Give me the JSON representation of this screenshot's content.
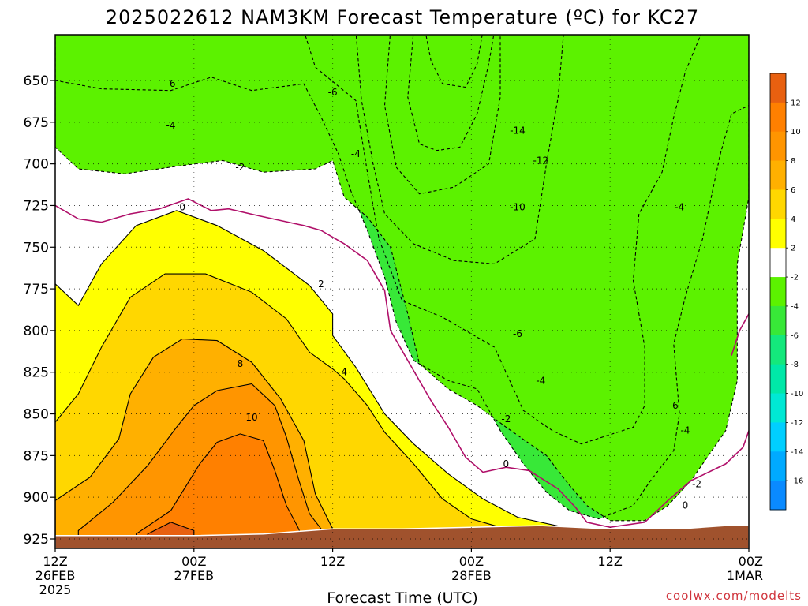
{
  "title": "2025022612 NAM3KM Forecast Temperature (ºC) for KC27",
  "credit": "coolwx.com/modelts",
  "chart_data": {
    "type": "heatmap",
    "title": "2025022612 NAM3KM Forecast Temperature (ºC) for KC27",
    "xlabel": "Forecast Time (UTC)",
    "ylabel": "",
    "x_unit": "forecast hour from 2025022612",
    "y_unit": "pressure (hPa)",
    "y_reversed": true,
    "xlim": [
      0,
      60
    ],
    "ylim": [
      935,
      620
    ],
    "x_ticks": [
      {
        "x": 0,
        "lines": [
          "12Z",
          "26FEB",
          "2025"
        ]
      },
      {
        "x": 12,
        "lines": [
          "00Z",
          "27FEB"
        ]
      },
      {
        "x": 24,
        "lines": [
          "12Z"
        ]
      },
      {
        "x": 36,
        "lines": [
          "00Z",
          "28FEB"
        ]
      },
      {
        "x": 48,
        "lines": [
          "12Z"
        ]
      },
      {
        "x": 60,
        "lines": [
          "00Z",
          "1MAR"
        ]
      }
    ],
    "y_ticks": [
      650,
      675,
      700,
      725,
      750,
      775,
      800,
      825,
      850,
      875,
      900,
      925
    ],
    "grid": true,
    "terrain": {
      "color": "#a0522d",
      "surface_pressure": [
        [
          0,
          923
        ],
        [
          12,
          923
        ],
        [
          18,
          922
        ],
        [
          24,
          919
        ],
        [
          30,
          919
        ],
        [
          36,
          918
        ],
        [
          42,
          917
        ],
        [
          48,
          919
        ],
        [
          54,
          919
        ],
        [
          58,
          917
        ],
        [
          60,
          917
        ]
      ]
    },
    "colorbar": {
      "colors": [
        "#0a8aff",
        "#00aaff",
        "#00cfff",
        "#00e8d4",
        "#00e8a8",
        "#14e87c",
        "#38e838",
        "#5cf200",
        "#ffffff",
        "#ffff00",
        "#ffd700",
        "#ffb000",
        "#ff9500",
        "#ff8000",
        "#e86010"
      ],
      "tick_labels": [
        "-16",
        "-14",
        "-12",
        "-10",
        "-8",
        "-6",
        "-4",
        "-2",
        "2",
        "4",
        "6",
        "8",
        "10",
        "12"
      ]
    },
    "levels": [
      {
        "value": -14,
        "color": "#00aaff",
        "points": [
          [
            32,
            620
          ],
          [
            32.5,
            638
          ],
          [
            33.5,
            652
          ],
          [
            35.5,
            654
          ],
          [
            36.5,
            640
          ],
          [
            37,
            620
          ]
        ]
      },
      {
        "value": -12,
        "color": "#00cfff",
        "points": [
          [
            31,
            620
          ],
          [
            30.5,
            660
          ],
          [
            31.5,
            688
          ],
          [
            33,
            692
          ],
          [
            35,
            690
          ],
          [
            36.5,
            670
          ],
          [
            37.5,
            640
          ],
          [
            38,
            620
          ]
        ]
      },
      {
        "value": -10,
        "color": "#00e8d4",
        "points": [
          [
            29,
            620
          ],
          [
            28.5,
            665
          ],
          [
            29.5,
            702
          ],
          [
            31.5,
            718
          ],
          [
            34.5,
            714
          ],
          [
            37.5,
            700
          ],
          [
            38.5,
            660
          ],
          [
            38.5,
            620
          ]
        ]
      },
      {
        "value": -8,
        "color": "#00e8a8",
        "points": [
          [
            26,
            620
          ],
          [
            26.5,
            662
          ],
          [
            27.5,
            700
          ],
          [
            28.5,
            730
          ],
          [
            31,
            748
          ],
          [
            34.5,
            758
          ],
          [
            38,
            760
          ],
          [
            41.5,
            745
          ],
          [
            42.5,
            700
          ],
          [
            43.5,
            660
          ],
          [
            44,
            620
          ]
        ]
      },
      {
        "value": -6,
        "color": "#14e87c",
        "points": [
          [
            21.5,
            620
          ],
          [
            22.5,
            642
          ],
          [
            26,
            662
          ],
          [
            27,
            705
          ],
          [
            28,
            745
          ],
          [
            30,
            782
          ],
          [
            33.5,
            792
          ],
          [
            38,
            810
          ],
          [
            40.5,
            848
          ],
          [
            43,
            860
          ],
          [
            45.5,
            868
          ],
          [
            50,
            858
          ],
          [
            51,
            845
          ],
          [
            51,
            810
          ],
          [
            50,
            770
          ],
          [
            50.5,
            730
          ],
          [
            52.5,
            705
          ],
          [
            53.5,
            672
          ],
          [
            54.5,
            645
          ],
          [
            56,
            620
          ]
        ]
      },
      {
        "value": -4,
        "color": "#38e838",
        "points": [
          [
            0,
            620
          ],
          [
            0,
            650
          ],
          [
            4,
            655
          ],
          [
            10,
            656
          ],
          [
            13.5,
            648
          ],
          [
            17,
            656
          ],
          [
            21.5,
            652
          ],
          [
            23,
            672
          ],
          [
            24.5,
            694
          ],
          [
            25.5,
            715
          ],
          [
            27,
            740
          ],
          [
            28.5,
            768
          ],
          [
            29.5,
            795
          ],
          [
            31,
            818
          ],
          [
            34,
            830
          ],
          [
            36.5,
            835
          ],
          [
            38.5,
            860
          ],
          [
            40.5,
            880
          ],
          [
            42.5,
            897
          ],
          [
            44.5,
            908
          ],
          [
            47,
            913
          ],
          [
            50,
            905
          ],
          [
            51.5,
            890
          ],
          [
            53.5,
            872
          ],
          [
            54,
            850
          ],
          [
            53.5,
            808
          ],
          [
            54.5,
            780
          ],
          [
            56,
            745
          ],
          [
            57.5,
            695
          ],
          [
            58.5,
            670
          ],
          [
            60,
            665
          ],
          [
            60,
            620
          ]
        ]
      },
      {
        "value": -2,
        "color": "#5cf200",
        "points": [
          [
            0,
            620
          ],
          [
            0,
            690
          ],
          [
            2,
            703
          ],
          [
            6,
            706
          ],
          [
            11,
            701
          ],
          [
            14.5,
            698
          ],
          [
            18,
            705
          ],
          [
            22.5,
            703
          ],
          [
            24,
            698
          ],
          [
            25,
            720
          ],
          [
            27,
            732
          ],
          [
            29,
            750
          ],
          [
            30.5,
            790
          ],
          [
            31.5,
            820
          ],
          [
            34,
            835
          ],
          [
            36.5,
            845
          ],
          [
            39,
            858
          ],
          [
            42.5,
            875
          ],
          [
            44.5,
            893
          ],
          [
            46,
            905
          ],
          [
            48,
            914
          ],
          [
            51,
            914
          ],
          [
            53,
            905
          ],
          [
            55,
            890
          ],
          [
            58,
            860
          ],
          [
            59,
            830
          ],
          [
            59,
            760
          ],
          [
            60,
            720
          ],
          [
            60,
            620
          ]
        ]
      },
      {
        "value": 2,
        "color": "#ffff00",
        "points": [
          [
            0,
            935
          ],
          [
            0,
            772
          ],
          [
            2,
            785
          ],
          [
            4,
            760
          ],
          [
            7,
            737
          ],
          [
            10.5,
            728
          ],
          [
            14,
            737
          ],
          [
            18,
            752
          ],
          [
            22,
            773
          ],
          [
            24,
            790
          ],
          [
            24,
            803
          ],
          [
            26,
            822
          ],
          [
            28.5,
            850
          ],
          [
            31,
            868
          ],
          [
            34,
            886
          ],
          [
            37,
            901
          ],
          [
            40,
            912
          ],
          [
            44,
            918
          ],
          [
            48,
            921
          ],
          [
            48,
            935
          ]
        ]
      },
      {
        "value": 4,
        "color": "#ffd700",
        "points": [
          [
            0,
            935
          ],
          [
            0,
            855
          ],
          [
            2,
            838
          ],
          [
            4,
            810
          ],
          [
            6.5,
            780
          ],
          [
            9.5,
            766
          ],
          [
            13,
            766
          ],
          [
            17,
            777
          ],
          [
            20,
            793
          ],
          [
            22,
            813
          ],
          [
            24,
            823
          ],
          [
            25,
            829
          ],
          [
            27,
            845
          ],
          [
            28.5,
            861
          ],
          [
            31,
            880
          ],
          [
            33.5,
            901
          ],
          [
            36,
            913
          ],
          [
            38.5,
            918
          ],
          [
            40,
            920
          ],
          [
            40,
            935
          ]
        ]
      },
      {
        "value": 6,
        "color": "#ffb000",
        "points": [
          [
            0,
            935
          ],
          [
            0,
            902
          ],
          [
            3,
            888
          ],
          [
            5.5,
            865
          ],
          [
            6.5,
            838
          ],
          [
            8.5,
            816
          ],
          [
            11,
            805
          ],
          [
            14,
            806
          ],
          [
            17,
            819
          ],
          [
            19.5,
            841
          ],
          [
            21.5,
            866
          ],
          [
            22.5,
            898
          ],
          [
            24,
            919
          ],
          [
            24,
            935
          ]
        ]
      },
      {
        "value": 8,
        "color": "#ff9500",
        "points": [
          [
            2,
            935
          ],
          [
            2,
            920
          ],
          [
            5,
            903
          ],
          [
            8,
            881
          ],
          [
            10.5,
            858
          ],
          [
            12,
            845
          ],
          [
            14,
            836
          ],
          [
            17,
            832
          ],
          [
            19,
            845
          ],
          [
            20,
            864
          ],
          [
            21,
            888
          ],
          [
            22,
            910
          ],
          [
            23,
            919
          ],
          [
            23,
            935
          ]
        ]
      },
      {
        "value": 10,
        "color": "#ff8000",
        "points": [
          [
            7,
            935
          ],
          [
            7,
            922
          ],
          [
            10,
            908
          ],
          [
            12.5,
            880
          ],
          [
            14,
            867
          ],
          [
            16,
            862
          ],
          [
            18,
            866
          ],
          [
            19,
            884
          ],
          [
            20,
            905
          ],
          [
            21,
            918
          ],
          [
            22,
            935
          ]
        ]
      },
      {
        "value": 12,
        "color": "#e86010",
        "points": [
          [
            8,
            935
          ],
          [
            8,
            922
          ],
          [
            10,
            915
          ],
          [
            12,
            920
          ],
          [
            12,
            935
          ]
        ]
      }
    ],
    "zero_line": [
      [
        0,
        725
      ],
      [
        2,
        733
      ],
      [
        4,
        735
      ],
      [
        6.5,
        730
      ],
      [
        9,
        727
      ],
      [
        11.5,
        721
      ],
      [
        13.5,
        728
      ],
      [
        15,
        727
      ],
      [
        17.5,
        731
      ],
      [
        19.5,
        734
      ],
      [
        21.5,
        737
      ],
      [
        23,
        740
      ],
      [
        25,
        748
      ],
      [
        27,
        758
      ],
      [
        28.5,
        776
      ],
      [
        29,
        800
      ],
      [
        30.5,
        818
      ],
      [
        32.5,
        842
      ],
      [
        34,
        858
      ],
      [
        35.5,
        876
      ],
      [
        37,
        885
      ],
      [
        39,
        882
      ],
      [
        41,
        884
      ],
      [
        43.5,
        895
      ],
      [
        45,
        906
      ],
      [
        46,
        915
      ],
      [
        48,
        918
      ],
      [
        51,
        915
      ],
      [
        53,
        902
      ],
      [
        55,
        890
      ],
      [
        58,
        880
      ],
      [
        59.5,
        870
      ],
      [
        60,
        860
      ]
    ],
    "zero_line_2": [
      [
        58.5,
        815
      ],
      [
        59.2,
        800
      ],
      [
        60,
        790
      ]
    ],
    "contour_labels": [
      {
        "x": 10,
        "y": 652,
        "text": "-6"
      },
      {
        "x": 24,
        "y": 657,
        "text": "-6"
      },
      {
        "x": 10,
        "y": 677,
        "text": "-4"
      },
      {
        "x": 26,
        "y": 694,
        "text": "-4"
      },
      {
        "x": 16,
        "y": 702,
        "text": "-2"
      },
      {
        "x": 11,
        "y": 726,
        "text": "0"
      },
      {
        "x": 23,
        "y": 772,
        "text": "2"
      },
      {
        "x": 25,
        "y": 825,
        "text": "4"
      },
      {
        "x": 16,
        "y": 820,
        "text": "8"
      },
      {
        "x": 17,
        "y": 852,
        "text": "10"
      },
      {
        "x": 40,
        "y": 680,
        "text": "-14"
      },
      {
        "x": 42,
        "y": 698,
        "text": "-12"
      },
      {
        "x": 40,
        "y": 726,
        "text": "-10"
      },
      {
        "x": 54,
        "y": 726,
        "text": "-4"
      },
      {
        "x": 40,
        "y": 802,
        "text": "-6"
      },
      {
        "x": 42,
        "y": 830,
        "text": "-4"
      },
      {
        "x": 39,
        "y": 853,
        "text": "-2"
      },
      {
        "x": 39,
        "y": 880,
        "text": "0"
      },
      {
        "x": 53.5,
        "y": 845,
        "text": "-6"
      },
      {
        "x": 54.5,
        "y": 860,
        "text": "-4"
      },
      {
        "x": 55.5,
        "y": 892,
        "text": "-2"
      },
      {
        "x": 54.5,
        "y": 905,
        "text": "0"
      }
    ]
  }
}
